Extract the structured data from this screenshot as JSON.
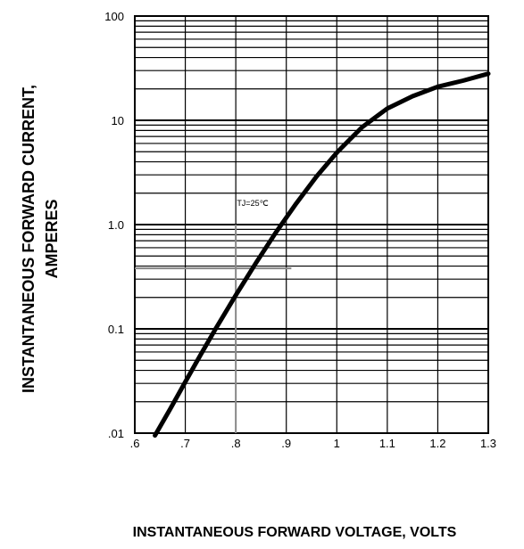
{
  "chart_data": {
    "type": "line",
    "title": "",
    "xlabel": "INSTANTANEOUS FORWARD VOLTAGE,  VOLTS",
    "ylabel_line1": "INSTANTANEOUS FORWARD CURRENT,",
    "ylabel_line2": "AMPERES",
    "xscale": "linear",
    "yscale": "log",
    "xlim": [
      0.6,
      1.3
    ],
    "ylim": [
      0.01,
      100
    ],
    "grid": true,
    "x_ticks": [
      {
        "value": 0.6,
        "label": ".6"
      },
      {
        "value": 0.7,
        "label": ".7"
      },
      {
        "value": 0.8,
        "label": ".8"
      },
      {
        "value": 0.9,
        "label": ".9"
      },
      {
        "value": 1.0,
        "label": "1"
      },
      {
        "value": 1.1,
        "label": "1.1"
      },
      {
        "value": 1.2,
        "label": "1.2"
      },
      {
        "value": 1.3,
        "label": "1.3"
      }
    ],
    "y_ticks": [
      {
        "value": 100,
        "label": "100"
      },
      {
        "value": 10,
        "label": "10"
      },
      {
        "value": 1,
        "label": "1.0"
      },
      {
        "value": 0.1,
        "label": "0.1"
      },
      {
        "value": 0.01,
        "label": ".01"
      }
    ],
    "annotation": "TJ=25℃",
    "reference_lines": {
      "x": 0.8,
      "y": 0.38
    },
    "series": [
      {
        "x": [
          0.64,
          0.67,
          0.7,
          0.73,
          0.76,
          0.8,
          0.84,
          0.88,
          0.92,
          0.96,
          1.0,
          1.05,
          1.1,
          1.15,
          1.2,
          1.25,
          1.3
        ],
        "y": [
          0.0095,
          0.017,
          0.031,
          0.056,
          0.1,
          0.21,
          0.43,
          0.85,
          1.6,
          2.9,
          4.9,
          8.6,
          13,
          17,
          21,
          24,
          28
        ]
      }
    ]
  }
}
